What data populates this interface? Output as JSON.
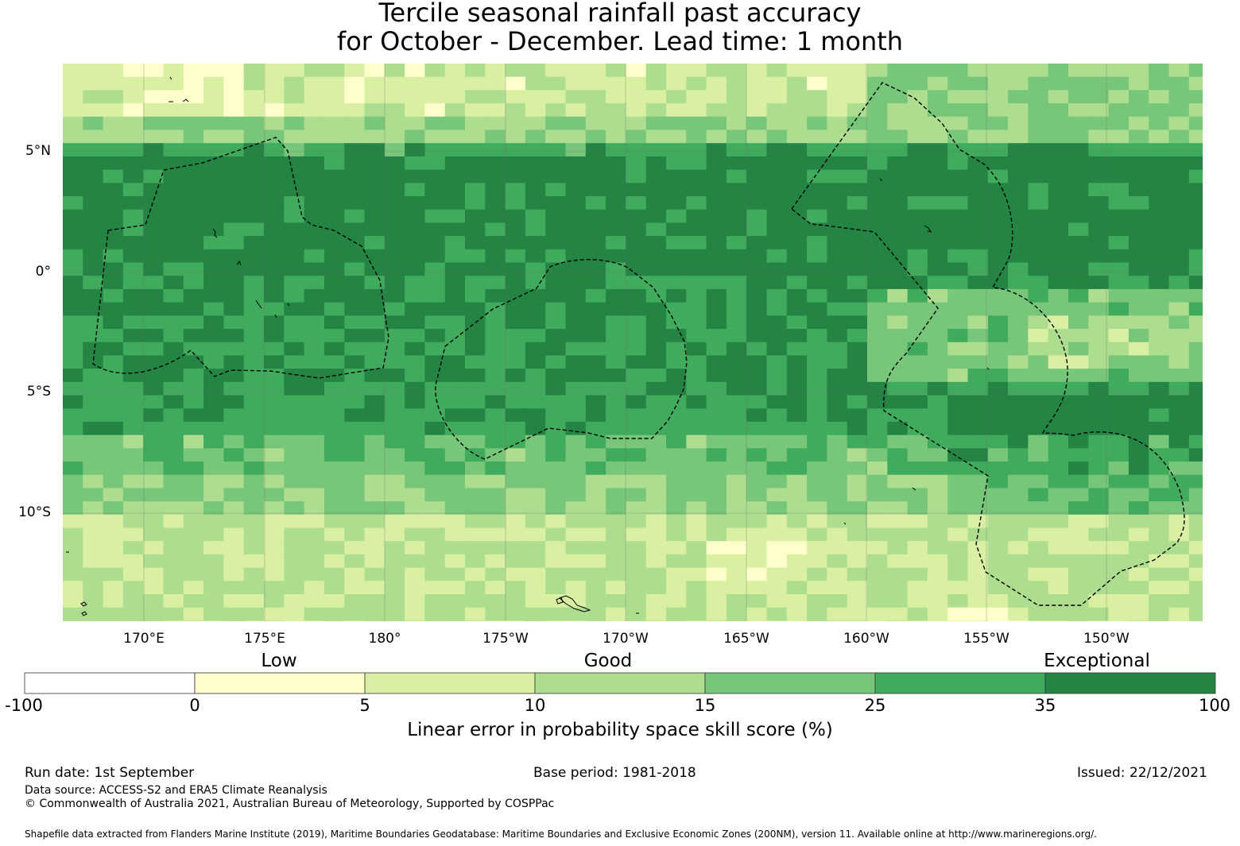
{
  "title": {
    "line1": "Tercile seasonal rainfall past accuracy",
    "line2": "for October - December. Lead time: 1 month"
  },
  "map": {
    "lat_labels": [
      "5°N",
      "0°",
      "5°S",
      "10°S"
    ],
    "lon_labels": [
      "170°E",
      "175°E",
      "180°",
      "175°W",
      "170°W",
      "165°W",
      "160°W",
      "155°W",
      "150°W"
    ],
    "skill_colors": [
      "#ffffff",
      "#ffffcc",
      "#d9f0a3",
      "#addd8e",
      "#78c679",
      "#41ab5d",
      "#238443"
    ]
  },
  "colorbar": {
    "category_labels": [
      "Low",
      "Good",
      "Exceptional"
    ],
    "tick_labels": [
      "-100",
      "0",
      "5",
      "10",
      "15",
      "25",
      "35",
      "100"
    ],
    "title": "Linear error in probability space skill score (%)"
  },
  "footer": {
    "run_date": "Run date: 1st September",
    "base_period": "Base period: 1981-2018",
    "issued": "Issued: 22/12/2021",
    "data_source": "Data source: ACCESS-S2 and ERA5 Climate Reanalysis",
    "copyright": "© Commonwealth of Australia 2021, Australian Bureau of Meteorology, Supported by COSPPac",
    "shapefile": "Shapefile data extracted from Flanders Marine Institute (2019), Maritime Boundaries Geodatabase: Maritime Boundaries and Exclusive Economic Zones (200NM), version 11. Available online at http://www.marineregions.org/."
  }
}
